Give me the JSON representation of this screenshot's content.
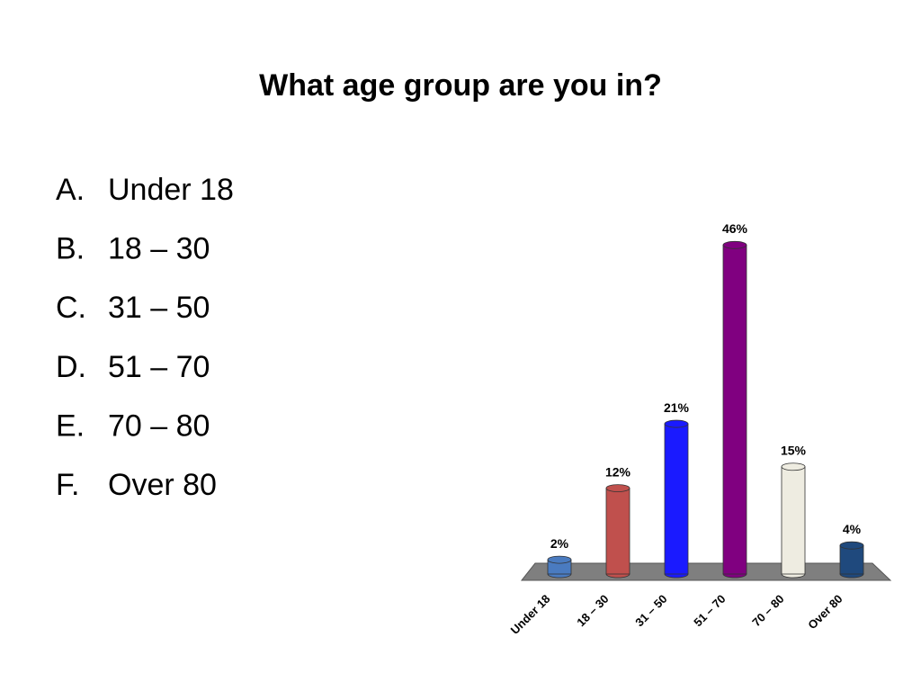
{
  "slide": {
    "title": "What age group are you in?",
    "options": [
      {
        "letter": "A.",
        "text": "Under 18"
      },
      {
        "letter": "B.",
        "text": "18 – 30"
      },
      {
        "letter": "C.",
        "text": "31 – 50"
      },
      {
        "letter": "D.",
        "text": "51 – 70"
      },
      {
        "letter": "E.",
        "text": "70 – 80"
      },
      {
        "letter": "F.",
        "text": "Over 80"
      }
    ]
  },
  "chart_data": {
    "type": "bar",
    "categories": [
      "Under 18",
      "18 – 30",
      "31 – 50",
      "51 – 70",
      "70 – 80",
      "Over 80"
    ],
    "values": [
      2,
      12,
      21,
      46,
      15,
      4
    ],
    "value_labels": [
      "2%",
      "12%",
      "21%",
      "46%",
      "15%",
      "4%"
    ],
    "colors": [
      "#4a7bc0",
      "#c0504d",
      "#1a1aff",
      "#800080",
      "#eeece1",
      "#1f497d"
    ]
  }
}
